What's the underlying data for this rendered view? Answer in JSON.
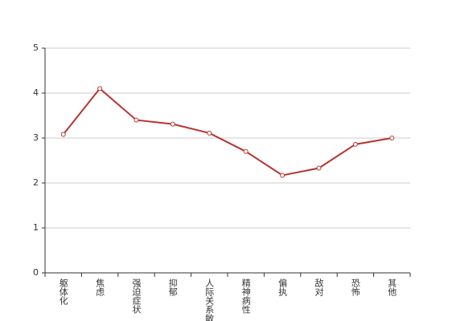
{
  "chart_data": {
    "type": "line",
    "categories": [
      "躯体化",
      "焦虑",
      "强迫症状",
      "抑郁",
      "人际关系敏感",
      "精神病性",
      "偏执",
      "敌对",
      "恐怖",
      "其他"
    ],
    "series": [
      {
        "color": "#b83330",
        "values": [
          3.08,
          4.1,
          3.4,
          3.31,
          3.11,
          2.7,
          2.17,
          2.33,
          2.86,
          3.0
        ]
      }
    ],
    "ylim": [
      0,
      5
    ],
    "yticks": [
      0,
      1,
      2,
      3,
      4,
      5
    ],
    "grid": true
  }
}
